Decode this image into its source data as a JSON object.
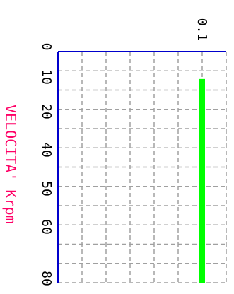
{
  "chart_data": {
    "type": "bar",
    "orientation": "rotated-90",
    "ylabel": "VELOCITA'  Krpm",
    "y_ticks": [
      "0",
      "10",
      "20",
      "40",
      "50",
      "60",
      "80"
    ],
    "x_ticks": [
      "0.1"
    ],
    "ylim": [
      0,
      80
    ],
    "grid": true,
    "series": [
      {
        "x": 0.1,
        "y_start": 10,
        "y_end": 80
      }
    ],
    "colors": {
      "bar": "#00ff00",
      "axis": "#0000cc",
      "grid": "#a0a0a0",
      "label": "#ff0066"
    }
  }
}
